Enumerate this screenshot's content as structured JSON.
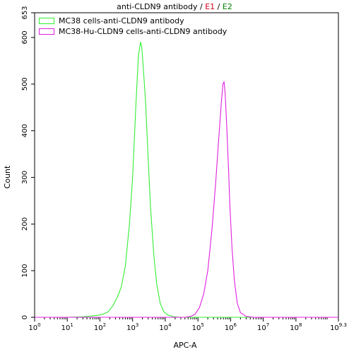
{
  "title": {
    "main": "anti-CLDN9 antibody",
    "sep1": " / ",
    "e1": "E1",
    "sep2": " / ",
    "e2": "E2"
  },
  "colors": {
    "e1": "#d0001b",
    "e2": "#008000",
    "series1": "#33ee33",
    "series2": "#e020e0"
  },
  "chart_data": {
    "type": "line",
    "title": "anti-CLDN9 antibody / E1 / E2",
    "xlabel": "APC-A",
    "ylabel": "Count",
    "x_scale": "log10",
    "xlim": [
      1,
      1995262315
    ],
    "ylim": [
      0,
      653
    ],
    "y_ticks": [
      0,
      100,
      200,
      300,
      400,
      500,
      600,
      653
    ],
    "x_ticks": [
      {
        "value": 1,
        "base": "10",
        "exp": "0"
      },
      {
        "value": 10,
        "base": "10",
        "exp": "1"
      },
      {
        "value": 100,
        "base": "10",
        "exp": "2"
      },
      {
        "value": 1000,
        "base": "10",
        "exp": "3"
      },
      {
        "value": 10000,
        "base": "10",
        "exp": "4"
      },
      {
        "value": 100000,
        "base": "10",
        "exp": "5"
      },
      {
        "value": 1000000,
        "base": "10",
        "exp": "6"
      },
      {
        "value": 10000000,
        "base": "10",
        "exp": "7"
      },
      {
        "value": 100000000,
        "base": "10",
        "exp": "8"
      },
      {
        "value": 1995262315,
        "base": "10",
        "exp": "9.3"
      }
    ],
    "legend_position": "top-left",
    "grid": false,
    "series": [
      {
        "name": "MC38 cells-anti-CLDN9 antibody",
        "color": "#33ee33",
        "points": [
          [
            1,
            0
          ],
          [
            10,
            0
          ],
          [
            30,
            1
          ],
          [
            60,
            3
          ],
          [
            100,
            5
          ],
          [
            140,
            8
          ],
          [
            180,
            12
          ],
          [
            250,
            25
          ],
          [
            350,
            45
          ],
          [
            450,
            65
          ],
          [
            600,
            110
          ],
          [
            800,
            200
          ],
          [
            1000,
            300
          ],
          [
            1250,
            450
          ],
          [
            1500,
            560
          ],
          [
            1750,
            590
          ],
          [
            1900,
            580
          ],
          [
            2100,
            540
          ],
          [
            2500,
            460
          ],
          [
            3000,
            340
          ],
          [
            3500,
            240
          ],
          [
            4500,
            130
          ],
          [
            5500,
            70
          ],
          [
            7000,
            30
          ],
          [
            9000,
            12
          ],
          [
            12000,
            5
          ],
          [
            18000,
            1
          ],
          [
            30000,
            0
          ],
          [
            1995262315,
            0
          ]
        ]
      },
      {
        "name": "MC38-Hu-CLDN9 cells-anti-CLDN9 antibody",
        "color": "#e020e0",
        "points": [
          [
            1,
            0
          ],
          [
            40000,
            0
          ],
          [
            60000,
            2
          ],
          [
            80000,
            6
          ],
          [
            110000,
            20
          ],
          [
            150000,
            50
          ],
          [
            200000,
            100
          ],
          [
            270000,
            190
          ],
          [
            350000,
            290
          ],
          [
            430000,
            380
          ],
          [
            520000,
            460
          ],
          [
            580000,
            500
          ],
          [
            630000,
            505
          ],
          [
            680000,
            480
          ],
          [
            750000,
            420
          ],
          [
            850000,
            330
          ],
          [
            950000,
            240
          ],
          [
            1100000,
            150
          ],
          [
            1300000,
            80
          ],
          [
            1600000,
            30
          ],
          [
            2000000,
            10
          ],
          [
            3000000,
            2
          ],
          [
            5000000,
            0
          ],
          [
            1995262315,
            0
          ]
        ]
      }
    ]
  }
}
